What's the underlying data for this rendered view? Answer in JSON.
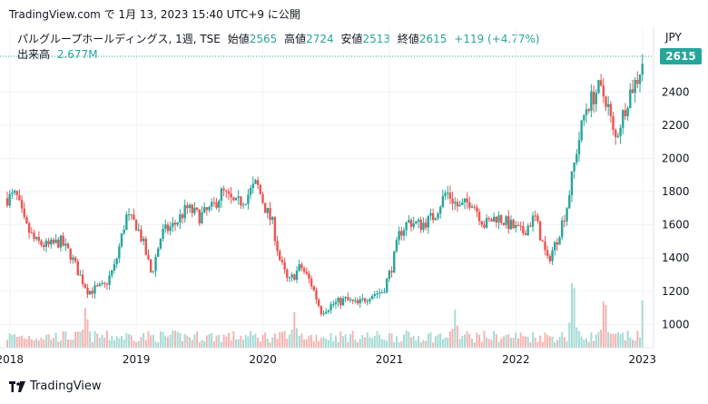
{
  "header": {
    "caption": "TradingView.com で 1月 13, 2023 15:40 UTC+9 に公開",
    "symbol": "パルグループホールディングス, 1週, TSE",
    "open_label": "始値",
    "open_value": "2565",
    "high_label": "高値",
    "high_value": "2724",
    "low_label": "安値",
    "low_value": "2513",
    "close_label": "終値",
    "close_value": "2615",
    "change": "+119 (+4.77%)",
    "volume_label": "出来高",
    "volume_value": "2.677M"
  },
  "currency": "JPY",
  "last_price_label": "2615",
  "footer": {
    "brand": "TradingView",
    "logo_icon": "tradingview-logo-icon"
  },
  "colors": {
    "up": "#26a69a",
    "down": "#ef5350",
    "volume_up": "#a7dbd5",
    "volume_down": "#f5b5b3",
    "grid": "#f0f3fa"
  },
  "chart_data": {
    "type": "candlestick",
    "title": "",
    "xlabel": "",
    "ylabel": "",
    "ylim": [
      860,
      2790
    ],
    "y_ticks": [
      1000,
      1200,
      1400,
      1600,
      1800,
      2000,
      2200,
      2400
    ],
    "x_ticks": [
      {
        "label": "2018",
        "t": 2018.0
      },
      {
        "label": "2019",
        "t": 2019.0
      },
      {
        "label": "2020",
        "t": 2020.0
      },
      {
        "label": "2021",
        "t": 2021.0
      },
      {
        "label": "2022",
        "t": 2022.0
      },
      {
        "label": "2023",
        "t": 2023.0
      }
    ],
    "x_range": [
      2017.98,
      2023.03
    ],
    "price_path": [
      [
        2017.98,
        1760
      ],
      [
        2018.05,
        1780
      ],
      [
        2018.12,
        1600
      ],
      [
        2018.2,
        1500
      ],
      [
        2018.3,
        1470
      ],
      [
        2018.4,
        1500
      ],
      [
        2018.48,
        1420
      ],
      [
        2018.55,
        1300
      ],
      [
        2018.62,
        1200
      ],
      [
        2018.75,
        1230
      ],
      [
        2018.83,
        1350
      ],
      [
        2018.92,
        1650
      ],
      [
        2019.0,
        1600
      ],
      [
        2019.05,
        1500
      ],
      [
        2019.12,
        1300
      ],
      [
        2019.2,
        1550
      ],
      [
        2019.3,
        1600
      ],
      [
        2019.4,
        1700
      ],
      [
        2019.5,
        1650
      ],
      [
        2019.6,
        1700
      ],
      [
        2019.68,
        1800
      ],
      [
        2019.78,
        1720
      ],
      [
        2019.86,
        1760
      ],
      [
        2019.95,
        1850
      ],
      [
        2020.02,
        1700
      ],
      [
        2020.08,
        1600
      ],
      [
        2020.13,
        1400
      ],
      [
        2020.2,
        1250
      ],
      [
        2020.3,
        1350
      ],
      [
        2020.38,
        1250
      ],
      [
        2020.46,
        1080
      ],
      [
        2020.55,
        1120
      ],
      [
        2020.65,
        1150
      ],
      [
        2020.75,
        1120
      ],
      [
        2020.85,
        1180
      ],
      [
        2020.95,
        1200
      ],
      [
        2021.02,
        1350
      ],
      [
        2021.08,
        1550
      ],
      [
        2021.15,
        1620
      ],
      [
        2021.25,
        1600
      ],
      [
        2021.35,
        1650
      ],
      [
        2021.45,
        1800
      ],
      [
        2021.55,
        1700
      ],
      [
        2021.65,
        1750
      ],
      [
        2021.75,
        1600
      ],
      [
        2021.85,
        1650
      ],
      [
        2021.95,
        1600
      ],
      [
        2022.05,
        1550
      ],
      [
        2022.15,
        1650
      ],
      [
        2022.25,
        1380
      ],
      [
        2022.32,
        1500
      ],
      [
        2022.4,
        1700
      ],
      [
        2022.48,
        2050
      ],
      [
        2022.55,
        2300
      ],
      [
        2022.65,
        2420
      ],
      [
        2022.72,
        2350
      ],
      [
        2022.78,
        2100
      ],
      [
        2022.84,
        2250
      ],
      [
        2022.9,
        2400
      ],
      [
        2022.96,
        2480
      ],
      [
        2023.01,
        2615
      ]
    ],
    "volume_range": [
      0,
      10000000
    ],
    "volume_peaks_M": [
      {
        "t": 2018.6,
        "v": 5.2
      },
      {
        "t": 2020.25,
        "v": 4.2
      },
      {
        "t": 2021.52,
        "v": 4.6
      },
      {
        "t": 2022.45,
        "v": 9.5
      },
      {
        "t": 2022.7,
        "v": 6.8
      },
      {
        "t": 2023.01,
        "v": 7.5
      }
    ],
    "series": [
      {
        "name": "出来高",
        "last_volume": "2.677M"
      }
    ]
  }
}
